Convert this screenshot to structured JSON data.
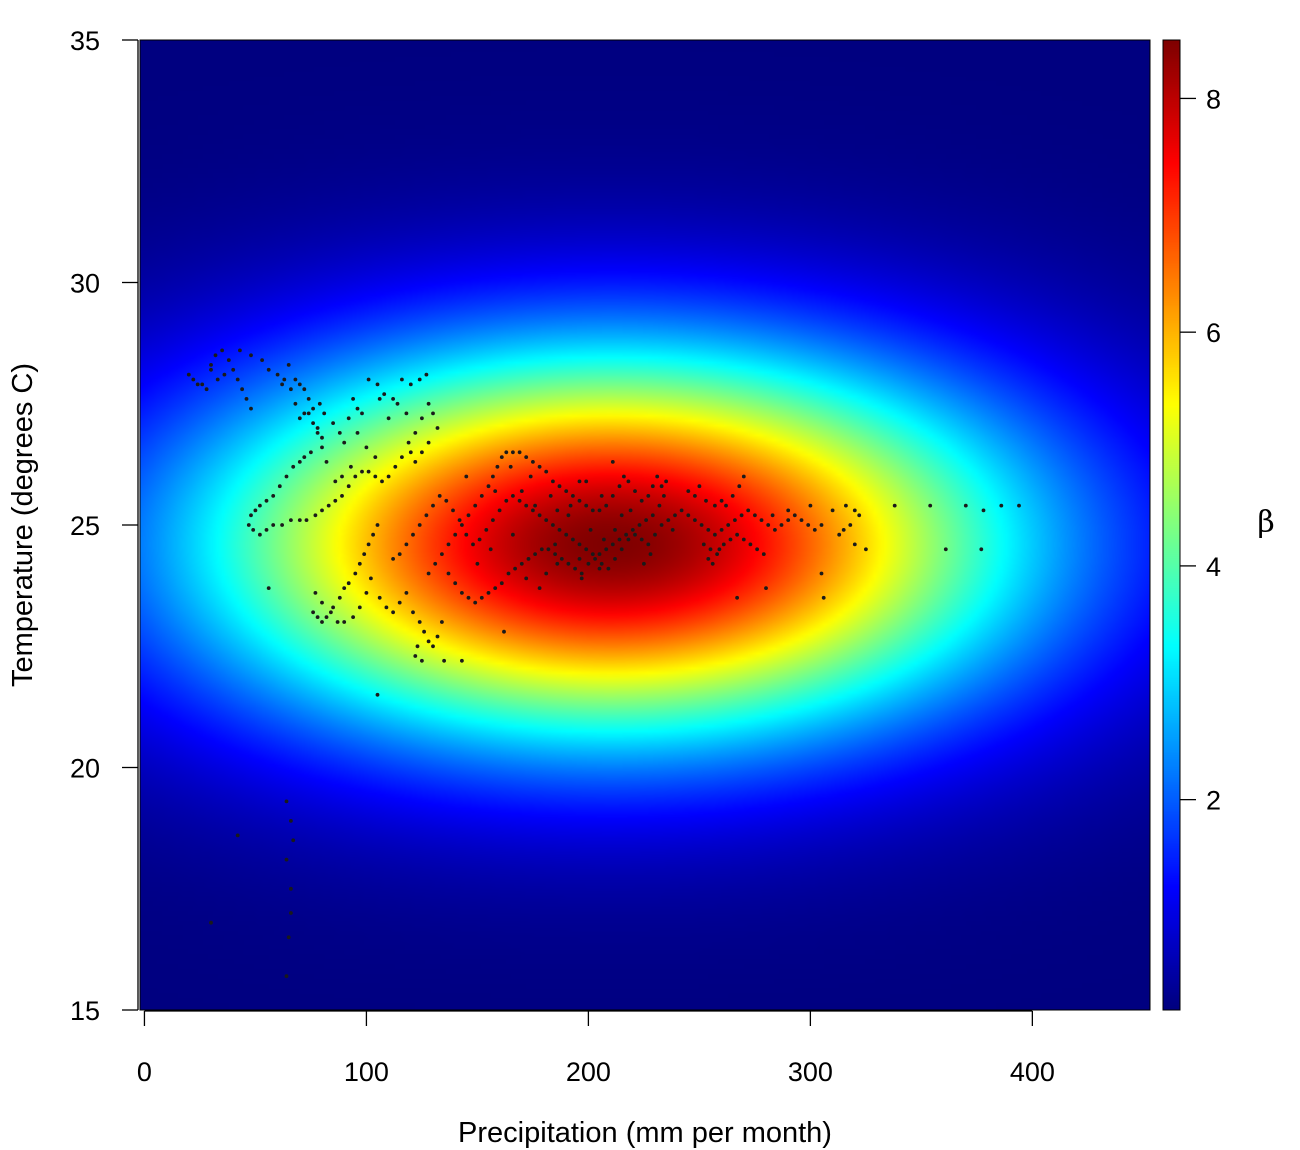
{
  "chart_data": {
    "type": "heatmap",
    "title": "",
    "xlabel": "Precipitation (mm per month)",
    "ylabel": "Temperature (degrees C)",
    "xlim": [
      -2,
      453
    ],
    "ylim": [
      15,
      35
    ],
    "x_ticks": [
      "0",
      "100",
      "200",
      "300",
      "400"
    ],
    "y_ticks": [
      "15",
      "20",
      "25",
      "30",
      "35"
    ],
    "colorbar": {
      "label": "β",
      "range": [
        0.2,
        8.5
      ],
      "ticks": [
        "2",
        "4",
        "6",
        "8"
      ],
      "colormap": "jet"
    },
    "surface": {
      "center_x": 210,
      "center_y": 24.6,
      "peak": 8.5,
      "floor": 0.2,
      "radius_x": 330,
      "radius_y": 7.2
    },
    "points": [
      [
        20,
        28.1
      ],
      [
        22,
        28.0
      ],
      [
        24,
        27.9
      ],
      [
        26,
        27.9
      ],
      [
        28,
        27.8
      ],
      [
        30,
        28.3
      ],
      [
        32,
        28.5
      ],
      [
        35,
        28.6
      ],
      [
        38,
        28.4
      ],
      [
        40,
        28.2
      ],
      [
        42,
        28.0
      ],
      [
        44,
        27.8
      ],
      [
        46,
        27.6
      ],
      [
        48,
        27.4
      ],
      [
        36,
        28.1
      ],
      [
        33,
        28.0
      ],
      [
        30,
        28.2
      ],
      [
        43,
        28.6
      ],
      [
        48,
        28.5
      ],
      [
        53,
        28.4
      ],
      [
        56,
        28.2
      ],
      [
        60,
        28.1
      ],
      [
        63,
        28.0
      ],
      [
        66,
        27.8
      ],
      [
        65,
        28.3
      ],
      [
        62,
        27.9
      ],
      [
        68,
        27.5
      ],
      [
        70,
        27.2
      ],
      [
        72,
        27.3
      ],
      [
        74,
        27.3
      ],
      [
        76,
        27.1
      ],
      [
        78,
        26.9
      ],
      [
        80,
        26.6
      ],
      [
        82,
        26.3
      ],
      [
        80,
        26.8
      ],
      [
        78,
        27.0
      ],
      [
        76,
        27.4
      ],
      [
        74,
        27.6
      ],
      [
        72,
        27.8
      ],
      [
        70,
        27.9
      ],
      [
        68,
        28.0
      ],
      [
        79,
        27.5
      ],
      [
        81,
        27.3
      ],
      [
        85,
        27.1
      ],
      [
        88,
        26.9
      ],
      [
        90,
        26.7
      ],
      [
        92,
        27.2
      ],
      [
        94,
        27.6
      ],
      [
        96,
        27.4
      ],
      [
        75,
        26.5
      ],
      [
        72,
        26.4
      ],
      [
        70,
        26.3
      ],
      [
        67,
        26.2
      ],
      [
        64,
        26.0
      ],
      [
        61,
        25.8
      ],
      [
        58,
        25.6
      ],
      [
        55,
        25.5
      ],
      [
        52,
        25.4
      ],
      [
        50,
        25.3
      ],
      [
        48,
        25.2
      ],
      [
        47,
        25.0
      ],
      [
        49,
        24.9
      ],
      [
        52,
        24.8
      ],
      [
        55,
        24.9
      ],
      [
        58,
        25.0
      ],
      [
        62,
        25.0
      ],
      [
        66,
        25.1
      ],
      [
        70,
        25.1
      ],
      [
        73,
        25.1
      ],
      [
        77,
        25.2
      ],
      [
        80,
        25.3
      ],
      [
        83,
        25.4
      ],
      [
        86,
        25.5
      ],
      [
        89,
        25.6
      ],
      [
        92,
        25.8
      ],
      [
        95,
        26.0
      ],
      [
        98,
        26.1
      ],
      [
        101,
        26.1
      ],
      [
        104,
        26.0
      ],
      [
        107,
        25.9
      ],
      [
        110,
        26.0
      ],
      [
        113,
        26.2
      ],
      [
        116,
        26.4
      ],
      [
        119,
        26.7
      ],
      [
        122,
        26.9
      ],
      [
        125,
        27.2
      ],
      [
        128,
        27.5
      ],
      [
        130,
        27.3
      ],
      [
        132,
        27.0
      ],
      [
        128,
        26.7
      ],
      [
        125,
        26.5
      ],
      [
        122,
        26.3
      ],
      [
        120,
        26.5
      ],
      [
        105,
        27.9
      ],
      [
        108,
        27.7
      ],
      [
        112,
        27.6
      ],
      [
        116,
        28.0
      ],
      [
        120,
        27.9
      ],
      [
        124,
        28.0
      ],
      [
        127,
        28.1
      ],
      [
        101,
        28.0
      ],
      [
        114,
        27.5
      ],
      [
        118,
        27.3
      ],
      [
        110,
        27.2
      ],
      [
        106,
        27.6
      ],
      [
        98,
        27.3
      ],
      [
        96,
        26.9
      ],
      [
        100,
        26.6
      ],
      [
        104,
        26.4
      ],
      [
        93,
        26.2
      ],
      [
        89,
        26.0
      ],
      [
        86,
        25.9
      ],
      [
        56,
        23.7
      ],
      [
        76,
        23.2
      ],
      [
        78,
        23.1
      ],
      [
        80,
        23.0
      ],
      [
        82,
        23.1
      ],
      [
        85,
        23.3
      ],
      [
        88,
        23.5
      ],
      [
        90,
        23.7
      ],
      [
        92,
        23.8
      ],
      [
        95,
        24.0
      ],
      [
        97,
        24.2
      ],
      [
        99,
        24.4
      ],
      [
        101,
        24.6
      ],
      [
        103,
        24.8
      ],
      [
        105,
        25.0
      ],
      [
        102,
        23.9
      ],
      [
        100,
        23.6
      ],
      [
        97,
        23.3
      ],
      [
        94,
        23.1
      ],
      [
        90,
        23.0
      ],
      [
        87,
        23.0
      ],
      [
        84,
        23.2
      ],
      [
        80,
        23.4
      ],
      [
        77,
        23.6
      ],
      [
        106,
        23.5
      ],
      [
        109,
        23.3
      ],
      [
        112,
        23.2
      ],
      [
        115,
        23.4
      ],
      [
        118,
        23.6
      ],
      [
        121,
        23.2
      ],
      [
        124,
        23.0
      ],
      [
        126,
        22.8
      ],
      [
        128,
        22.6
      ],
      [
        130,
        22.5
      ],
      [
        132,
        22.7
      ],
      [
        134,
        23.0
      ],
      [
        123,
        22.5
      ],
      [
        122,
        22.3
      ],
      [
        125,
        22.2
      ],
      [
        135,
        22.2
      ],
      [
        143,
        22.2
      ],
      [
        105,
        21.5
      ],
      [
        128,
        24.0
      ],
      [
        131,
        24.2
      ],
      [
        134,
        24.4
      ],
      [
        137,
        24.6
      ],
      [
        140,
        24.8
      ],
      [
        143,
        25.0
      ],
      [
        146,
        25.2
      ],
      [
        149,
        25.4
      ],
      [
        152,
        25.6
      ],
      [
        155,
        25.8
      ],
      [
        157,
        26.0
      ],
      [
        159,
        26.2
      ],
      [
        161,
        26.4
      ],
      [
        163,
        26.5
      ],
      [
        166,
        26.5
      ],
      [
        169,
        26.5
      ],
      [
        172,
        26.4
      ],
      [
        175,
        26.3
      ],
      [
        178,
        26.2
      ],
      [
        181,
        26.1
      ],
      [
        184,
        25.9
      ],
      [
        187,
        25.8
      ],
      [
        190,
        25.7
      ],
      [
        193,
        25.6
      ],
      [
        196,
        25.5
      ],
      [
        199,
        25.4
      ],
      [
        202,
        25.3
      ],
      [
        205,
        25.3
      ],
      [
        208,
        25.4
      ],
      [
        211,
        25.6
      ],
      [
        214,
        25.8
      ],
      [
        216,
        26.0
      ],
      [
        218,
        25.9
      ],
      [
        221,
        25.7
      ],
      [
        224,
        25.5
      ],
      [
        227,
        25.6
      ],
      [
        229,
        25.8
      ],
      [
        231,
        26.0
      ],
      [
        233,
        25.8
      ],
      [
        234,
        25.6
      ],
      [
        232,
        25.4
      ],
      [
        229,
        25.2
      ],
      [
        226,
        25.1
      ],
      [
        223,
        25.0
      ],
      [
        220,
        24.9
      ],
      [
        217,
        24.8
      ],
      [
        214,
        24.7
      ],
      [
        211,
        24.6
      ],
      [
        208,
        24.5
      ],
      [
        205,
        24.4
      ],
      [
        202,
        24.4
      ],
      [
        199,
        24.5
      ],
      [
        196,
        24.6
      ],
      [
        193,
        24.7
      ],
      [
        190,
        24.8
      ],
      [
        187,
        24.9
      ],
      [
        184,
        25.0
      ],
      [
        181,
        25.1
      ],
      [
        178,
        25.2
      ],
      [
        175,
        25.3
      ],
      [
        172,
        25.4
      ],
      [
        169,
        25.5
      ],
      [
        166,
        25.6
      ],
      [
        163,
        25.5
      ],
      [
        160,
        25.3
      ],
      [
        157,
        25.1
      ],
      [
        154,
        24.9
      ],
      [
        151,
        24.7
      ],
      [
        148,
        24.6
      ],
      [
        145,
        24.8
      ],
      [
        142,
        25.1
      ],
      [
        139,
        25.3
      ],
      [
        136,
        25.5
      ],
      [
        133,
        25.6
      ],
      [
        130,
        25.4
      ],
      [
        127,
        25.2
      ],
      [
        124,
        25.0
      ],
      [
        121,
        24.8
      ],
      [
        118,
        24.6
      ],
      [
        115,
        24.4
      ],
      [
        112,
        24.3
      ],
      [
        137,
        24.0
      ],
      [
        140,
        23.8
      ],
      [
        143,
        23.6
      ],
      [
        146,
        23.5
      ],
      [
        149,
        23.4
      ],
      [
        152,
        23.5
      ],
      [
        155,
        23.6
      ],
      [
        158,
        23.7
      ],
      [
        161,
        23.8
      ],
      [
        164,
        24.0
      ],
      [
        167,
        24.1
      ],
      [
        170,
        24.2
      ],
      [
        173,
        24.3
      ],
      [
        176,
        24.4
      ],
      [
        179,
        24.5
      ],
      [
        182,
        24.5
      ],
      [
        185,
        24.4
      ],
      [
        188,
        24.3
      ],
      [
        191,
        24.2
      ],
      [
        194,
        24.1
      ],
      [
        197,
        24.0
      ],
      [
        200,
        24.2
      ],
      [
        203,
        24.3
      ],
      [
        206,
        24.2
      ],
      [
        209,
        24.1
      ],
      [
        212,
        24.3
      ],
      [
        215,
        24.5
      ],
      [
        218,
        24.7
      ],
      [
        221,
        24.8
      ],
      [
        224,
        24.7
      ],
      [
        227,
        24.6
      ],
      [
        230,
        24.8
      ],
      [
        233,
        25.0
      ],
      [
        236,
        25.1
      ],
      [
        239,
        25.2
      ],
      [
        242,
        25.3
      ],
      [
        245,
        25.2
      ],
      [
        248,
        25.1
      ],
      [
        251,
        25.0
      ],
      [
        254,
        24.9
      ],
      [
        257,
        24.8
      ],
      [
        260,
        24.9
      ],
      [
        263,
        25.0
      ],
      [
        266,
        25.1
      ],
      [
        269,
        25.2
      ],
      [
        272,
        25.3
      ],
      [
        275,
        25.2
      ],
      [
        278,
        25.1
      ],
      [
        281,
        25.0
      ],
      [
        284,
        24.9
      ],
      [
        287,
        25.0
      ],
      [
        290,
        25.1
      ],
      [
        293,
        25.2
      ],
      [
        296,
        25.1
      ],
      [
        299,
        25.0
      ],
      [
        302,
        24.9
      ],
      [
        305,
        25.0
      ],
      [
        252,
        24.6
      ],
      [
        255,
        24.5
      ],
      [
        258,
        24.4
      ],
      [
        261,
        24.6
      ],
      [
        264,
        24.7
      ],
      [
        267,
        24.8
      ],
      [
        270,
        24.7
      ],
      [
        273,
        24.6
      ],
      [
        276,
        24.5
      ],
      [
        279,
        24.4
      ],
      [
        254,
        24.3
      ],
      [
        256,
        24.2
      ],
      [
        259,
        24.5
      ],
      [
        262,
        25.4
      ],
      [
        265,
        25.6
      ],
      [
        268,
        25.8
      ],
      [
        270,
        26.0
      ],
      [
        248,
        25.6
      ],
      [
        245,
        25.7
      ],
      [
        250,
        25.8
      ],
      [
        253,
        25.5
      ],
      [
        257,
        25.4
      ],
      [
        260,
        25.5
      ],
      [
        283,
        25.2
      ],
      [
        290,
        25.3
      ],
      [
        300,
        25.4
      ],
      [
        310,
        25.3
      ],
      [
        316,
        25.4
      ],
      [
        320,
        25.3
      ],
      [
        322,
        25.2
      ],
      [
        318,
        25.0
      ],
      [
        315,
        24.9
      ],
      [
        313,
        24.8
      ],
      [
        320,
        24.6
      ],
      [
        325,
        24.5
      ],
      [
        338,
        25.4
      ],
      [
        354,
        25.4
      ],
      [
        370,
        25.4
      ],
      [
        378,
        25.3
      ],
      [
        386,
        25.4
      ],
      [
        394,
        25.4
      ],
      [
        361,
        24.5
      ],
      [
        377,
        24.5
      ],
      [
        305,
        24.0
      ],
      [
        280,
        23.7
      ],
      [
        267,
        23.5
      ],
      [
        306,
        23.5
      ],
      [
        162,
        22.8
      ],
      [
        172,
        23.9
      ],
      [
        178,
        23.7
      ],
      [
        185,
        24.6
      ],
      [
        191,
        25.2
      ],
      [
        196,
        24.3
      ],
      [
        201,
        24.9
      ],
      [
        206,
        25.6
      ],
      [
        211,
        26.3
      ],
      [
        225,
        24.2
      ],
      [
        235,
        25.9
      ],
      [
        145,
        26.0
      ],
      [
        150,
        24.2
      ],
      [
        156,
        24.5
      ],
      [
        166,
        24.8
      ],
      [
        170,
        25.7
      ],
      [
        176,
        25.4
      ],
      [
        181,
        24.0
      ],
      [
        186,
        25.3
      ],
      [
        196,
        25.9
      ],
      [
        207,
        24.7
      ],
      [
        215,
        25.2
      ],
      [
        228,
        24.4
      ],
      [
        238,
        24.9
      ],
      [
        158,
        25.7
      ],
      [
        165,
        26.2
      ],
      [
        174,
        26.0
      ],
      [
        183,
        25.6
      ],
      [
        192,
        25.4
      ],
      [
        199,
        25.9
      ],
      [
        219,
        25.3
      ],
      [
        212,
        24.9
      ],
      [
        186,
        24.2
      ],
      [
        197,
        23.9
      ],
      [
        205,
        24.1
      ],
      [
        64,
        19.3
      ],
      [
        66,
        18.9
      ],
      [
        67,
        18.5
      ],
      [
        64,
        18.1
      ],
      [
        66,
        17.5
      ],
      [
        66,
        17.0
      ],
      [
        65,
        16.5
      ],
      [
        64,
        15.7
      ],
      [
        42,
        18.6
      ],
      [
        30,
        16.8
      ]
    ]
  }
}
